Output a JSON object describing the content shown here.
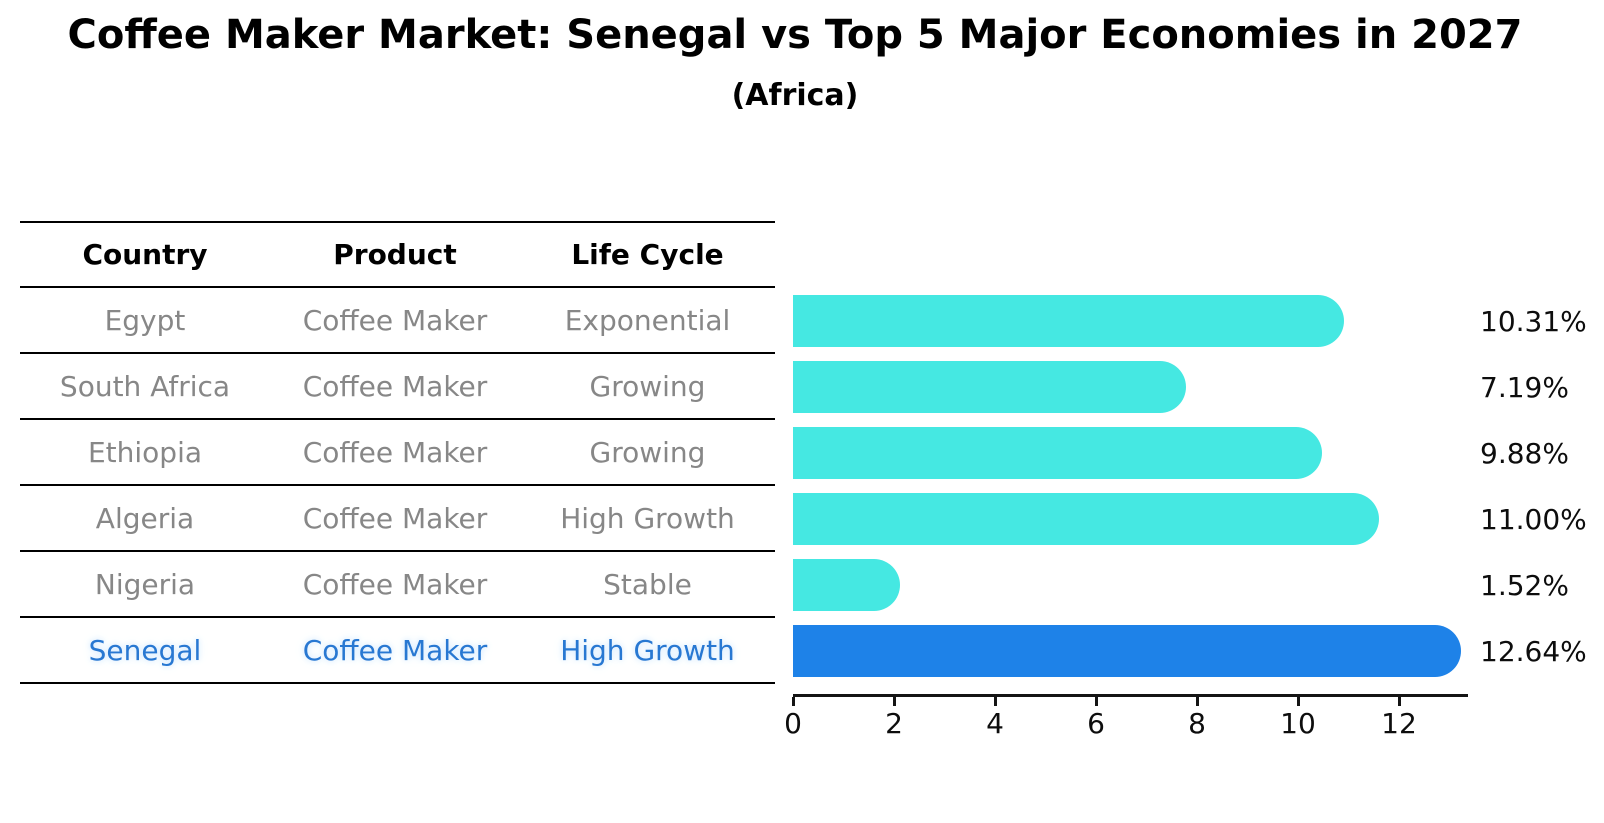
{
  "title": "Coffee Maker Market: Senegal vs Top 5 Major Economies in 2027",
  "subtitle": "(Africa)",
  "table": {
    "headers": [
      "Country",
      "Product",
      "Life Cycle"
    ],
    "rows": [
      {
        "country": "Egypt",
        "product": "Coffee Maker",
        "life_cycle": "Exponential",
        "highlight": false
      },
      {
        "country": "South Africa",
        "product": "Coffee Maker",
        "life_cycle": "Growing",
        "highlight": false
      },
      {
        "country": "Ethiopia",
        "product": "Coffee Maker",
        "life_cycle": "Growing",
        "highlight": false
      },
      {
        "country": "Algeria",
        "product": "Coffee Maker",
        "life_cycle": "High Growth",
        "highlight": false
      },
      {
        "country": "Nigeria",
        "product": "Coffee Maker",
        "life_cycle": "Stable",
        "highlight": false
      },
      {
        "country": "Senegal",
        "product": "Coffee Maker",
        "life_cycle": "High Growth",
        "highlight": true
      }
    ]
  },
  "chart_data": {
    "type": "bar",
    "orientation": "horizontal",
    "title": "Coffee Maker Market: Senegal vs Top 5 Major Economies in 2027",
    "subtitle": "(Africa)",
    "categories": [
      "Egypt",
      "South Africa",
      "Ethiopia",
      "Algeria",
      "Nigeria",
      "Senegal"
    ],
    "values": [
      10.31,
      7.19,
      9.88,
      11.0,
      1.52,
      12.64
    ],
    "value_labels": [
      "10.31%",
      "7.19%",
      "9.88%",
      "11.00%",
      "1.52%",
      "12.64%"
    ],
    "x_ticks": [
      0,
      2,
      4,
      6,
      8,
      10,
      12
    ],
    "xlim": [
      0,
      13.3
    ],
    "grid": false,
    "legend": false,
    "bar_color": "#45E8E2",
    "highlight_color": "#1E82E8",
    "highlight_index": 5
  }
}
